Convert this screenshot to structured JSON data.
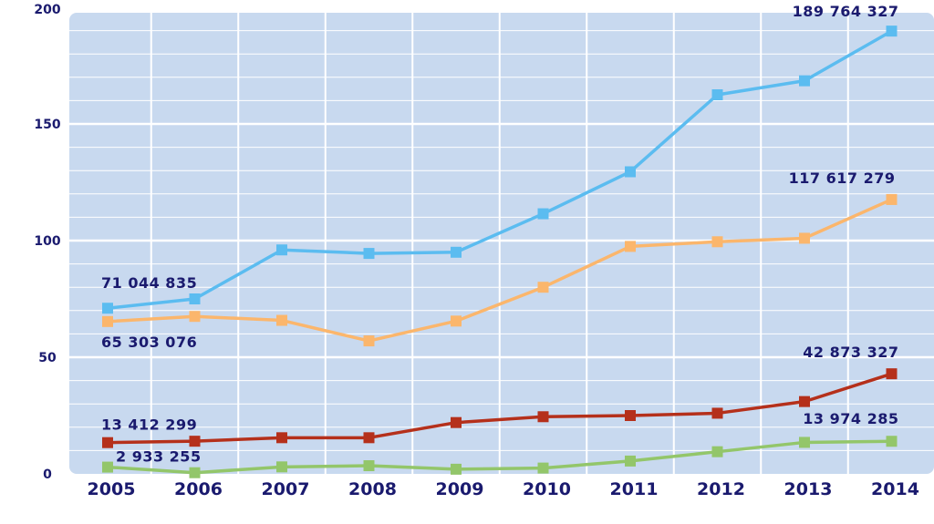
{
  "chart_data": {
    "type": "line",
    "title": "",
    "xlabel": "",
    "ylabel": "",
    "ylim": [
      0,
      200
    ],
    "y_ticks": [
      0,
      50,
      100,
      150,
      200
    ],
    "y_tick_labels": [
      "0",
      "50",
      "100",
      "150",
      "200"
    ],
    "categories": [
      "2005",
      "2006",
      "2007",
      "2008",
      "2009",
      "2010",
      "2011",
      "2012",
      "2013",
      "2014"
    ],
    "grid": true,
    "series": [
      {
        "name": "blue",
        "color": "#5bbcf0",
        "values": [
          71.0,
          75.0,
          96.0,
          94.5,
          95.0,
          111.5,
          129.5,
          162.5,
          168.5,
          189.8
        ]
      },
      {
        "name": "orange",
        "color": "#fbb66c",
        "values": [
          65.3,
          67.5,
          65.8,
          57.0,
          65.5,
          80.0,
          97.5,
          99.5,
          101.0,
          117.6
        ]
      },
      {
        "name": "red",
        "color": "#b5301b",
        "values": [
          13.4,
          14.0,
          15.5,
          15.5,
          22.0,
          24.5,
          25.0,
          26.0,
          31.0,
          42.9
        ]
      },
      {
        "name": "green",
        "color": "#93c66a",
        "values": [
          2.9,
          0.5,
          3.0,
          3.5,
          2.0,
          2.5,
          5.5,
          9.5,
          13.5,
          13.97
        ]
      }
    ],
    "annotations": [
      {
        "series": "blue",
        "index": 0,
        "text": "71 044 835"
      },
      {
        "series": "blue",
        "index": 9,
        "text": "189 764 327"
      },
      {
        "series": "orange",
        "index": 0,
        "text": "65 303 076"
      },
      {
        "series": "orange",
        "index": 9,
        "text": "117 617 279"
      },
      {
        "series": "red",
        "index": 0,
        "text": "13 412 299"
      },
      {
        "series": "red",
        "index": 9,
        "text": "42 873 327"
      },
      {
        "series": "green",
        "index": 0,
        "text": "2 933 255"
      },
      {
        "series": "green",
        "index": 9,
        "text": "13 974 285"
      }
    ]
  },
  "colors": {
    "plot_background": "#c8d9ef",
    "grid": "#ffffff",
    "text": "#1a1a6e"
  }
}
